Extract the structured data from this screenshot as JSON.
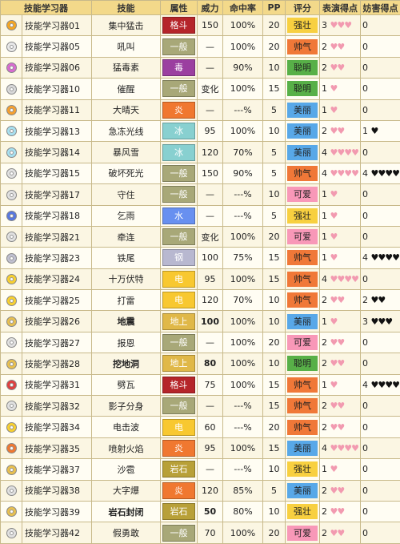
{
  "headers": [
    "技能学习器",
    "技能",
    "属性",
    "威力",
    "命中率",
    "PP",
    "评分",
    "表演得点",
    "妨害得点"
  ],
  "type_colors": {
    "格斗": "#b5252a",
    "一般": "#a8a878",
    "毒": "#9b3fa0",
    "炎": "#f07830",
    "冰": "#88d0d0",
    "水": "#6890f0",
    "钢": "#b8b8d0",
    "电": "#f8c830",
    "地上": "#e0b848",
    "岩石": "#b8a038"
  },
  "category_colors": {
    "强壮": "#f8d040",
    "帅气": "#f07838",
    "聪明": "#58b048",
    "美丽": "#58a8e8",
    "可爱": "#f898b8"
  },
  "disc_colors": [
    "#f5a623",
    "#e8e8e8",
    "#d86bd0",
    "#d8d8d8",
    "#f5a030",
    "#a8e0f0",
    "#a8e0f0",
    "#e0e0e0",
    "#e0e0e0",
    "#5878e0",
    "#e0e0e0",
    "#c0c0d0",
    "#f8d030",
    "#f8d030",
    "#e8c050",
    "#e0e0e0",
    "#e8c050",
    "#e04040",
    "#e0e0e0",
    "#f8d030",
    "#f07830",
    "#e8c050",
    "#e0e0e0",
    "#e8c050",
    "#e0e0e0"
  ],
  "rows": [
    {
      "item": "技能学习器01",
      "move": "集中猛击",
      "type": "格斗",
      "power": "150",
      "acc": "100%",
      "pp": "20",
      "cat": "强壮",
      "show": "3",
      "show_hearts": "♥♥♥",
      "jam": "0",
      "jam_hearts": ""
    },
    {
      "item": "技能学习器05",
      "move": "吼叫",
      "type": "一般",
      "power": "—",
      "acc": "100%",
      "pp": "20",
      "cat": "帅气",
      "show": "2",
      "show_hearts": "♥♥",
      "jam": "0",
      "jam_hearts": ""
    },
    {
      "item": "技能学习器06",
      "move": "猛毒素",
      "type": "毒",
      "power": "—",
      "acc": "90%",
      "pp": "10",
      "cat": "聪明",
      "show": "2",
      "show_hearts": "♥♥",
      "jam": "0",
      "jam_hearts": ""
    },
    {
      "item": "技能学习器10",
      "move": "催醒",
      "type": "一般",
      "power": "变化",
      "acc": "100%",
      "pp": "15",
      "cat": "聪明",
      "show": "1",
      "show_hearts": "♥",
      "jam": "0",
      "jam_hearts": ""
    },
    {
      "item": "技能学习器11",
      "move": "大晴天",
      "type": "炎",
      "power": "—",
      "acc": "---%",
      "pp": "5",
      "cat": "美丽",
      "show": "1",
      "show_hearts": "♥",
      "jam": "0",
      "jam_hearts": ""
    },
    {
      "item": "技能学习器13",
      "move": "急冻光线",
      "type": "冰",
      "power": "95",
      "acc": "100%",
      "pp": "10",
      "cat": "美丽",
      "show": "2",
      "show_hearts": "♥♥",
      "jam": "1",
      "jam_hearts": "♥"
    },
    {
      "item": "技能学习器14",
      "move": "暴风雪",
      "type": "冰",
      "power": "120",
      "acc": "70%",
      "pp": "5",
      "cat": "美丽",
      "show": "4",
      "show_hearts": "♥♥♥♥",
      "jam": "0",
      "jam_hearts": ""
    },
    {
      "item": "技能学习器15",
      "move": "破坏死光",
      "type": "一般",
      "power": "150",
      "acc": "90%",
      "pp": "5",
      "cat": "帅气",
      "show": "4",
      "show_hearts": "♥♥♥♥",
      "jam": "4",
      "jam_hearts": "♥♥♥♥"
    },
    {
      "item": "技能学习器17",
      "move": "守住",
      "type": "一般",
      "power": "—",
      "acc": "---%",
      "pp": "10",
      "cat": "可爱",
      "show": "1",
      "show_hearts": "♥",
      "jam": "0",
      "jam_hearts": ""
    },
    {
      "item": "技能学习器18",
      "move": "乞雨",
      "type": "水",
      "power": "—",
      "acc": "---%",
      "pp": "5",
      "cat": "强壮",
      "show": "1",
      "show_hearts": "♥",
      "jam": "0",
      "jam_hearts": ""
    },
    {
      "item": "技能学习器21",
      "move": "牵连",
      "type": "一般",
      "power": "变化",
      "acc": "100%",
      "pp": "20",
      "cat": "可爱",
      "show": "1",
      "show_hearts": "♥",
      "jam": "0",
      "jam_hearts": ""
    },
    {
      "item": "技能学习器23",
      "move": "铁尾",
      "type": "钢",
      "power": "100",
      "acc": "75%",
      "pp": "15",
      "cat": "帅气",
      "show": "1",
      "show_hearts": "♥",
      "jam": "4",
      "jam_hearts": "♥♥♥♥"
    },
    {
      "item": "技能学习器24",
      "move": "十万伏特",
      "type": "电",
      "power": "95",
      "acc": "100%",
      "pp": "15",
      "cat": "帅气",
      "show": "4",
      "show_hearts": "♥♥♥♥",
      "jam": "0",
      "jam_hearts": ""
    },
    {
      "item": "技能学习器25",
      "move": "打雷",
      "type": "电",
      "power": "120",
      "acc": "70%",
      "pp": "10",
      "cat": "帅气",
      "show": "2",
      "show_hearts": "♥♥",
      "jam": "2",
      "jam_hearts": "♥♥"
    },
    {
      "item": "技能学习器26",
      "move": "地震",
      "type": "地上",
      "power": "100",
      "acc": "100%",
      "pp": "10",
      "cat": "美丽",
      "show": "1",
      "show_hearts": "♥",
      "jam": "3",
      "jam_hearts": "♥♥♥",
      "bold": true
    },
    {
      "item": "技能学习器27",
      "move": "报恩",
      "type": "一般",
      "power": "—",
      "acc": "100%",
      "pp": "20",
      "cat": "可爱",
      "show": "2",
      "show_hearts": "♥♥",
      "jam": "0",
      "jam_hearts": ""
    },
    {
      "item": "技能学习器28",
      "move": "挖地洞",
      "type": "地上",
      "power": "80",
      "acc": "100%",
      "pp": "10",
      "cat": "聪明",
      "show": "2",
      "show_hearts": "♥♥",
      "jam": "0",
      "jam_hearts": "",
      "bold": true
    },
    {
      "item": "技能学习器31",
      "move": "劈瓦",
      "type": "格斗",
      "power": "75",
      "acc": "100%",
      "pp": "15",
      "cat": "帅气",
      "show": "1",
      "show_hearts": "♥",
      "jam": "4",
      "jam_hearts": "♥♥♥♥"
    },
    {
      "item": "技能学习器32",
      "move": "影子分身",
      "type": "一般",
      "power": "—",
      "acc": "---%",
      "pp": "15",
      "cat": "帅气",
      "show": "2",
      "show_hearts": "♥♥",
      "jam": "0",
      "jam_hearts": ""
    },
    {
      "item": "技能学习器34",
      "move": "电击波",
      "type": "电",
      "power": "60",
      "acc": "---%",
      "pp": "20",
      "cat": "帅气",
      "show": "2",
      "show_hearts": "♥♥",
      "jam": "0",
      "jam_hearts": ""
    },
    {
      "item": "技能学习器35",
      "move": "喷射火焰",
      "type": "炎",
      "power": "95",
      "acc": "100%",
      "pp": "15",
      "cat": "美丽",
      "show": "4",
      "show_hearts": "♥♥♥♥",
      "jam": "0",
      "jam_hearts": ""
    },
    {
      "item": "技能学习器37",
      "move": "沙雹",
      "type": "岩石",
      "power": "—",
      "acc": "---%",
      "pp": "10",
      "cat": "强壮",
      "show": "1",
      "show_hearts": "♥",
      "jam": "0",
      "jam_hearts": ""
    },
    {
      "item": "技能学习器38",
      "move": "大字爆",
      "type": "炎",
      "power": "120",
      "acc": "85%",
      "pp": "5",
      "cat": "美丽",
      "show": "2",
      "show_hearts": "♥♥",
      "jam": "0",
      "jam_hearts": ""
    },
    {
      "item": "技能学习器39",
      "move": "岩石封闭",
      "type": "岩石",
      "power": "50",
      "acc": "80%",
      "pp": "10",
      "cat": "强壮",
      "show": "2",
      "show_hearts": "♥♥",
      "jam": "0",
      "jam_hearts": "",
      "bold": true
    },
    {
      "item": "技能学习器42",
      "move": "假勇敢",
      "type": "一般",
      "power": "70",
      "acc": "100%",
      "pp": "20",
      "cat": "可爱",
      "show": "2",
      "show_hearts": "♥♥",
      "jam": "0",
      "jam_hearts": ""
    }
  ]
}
